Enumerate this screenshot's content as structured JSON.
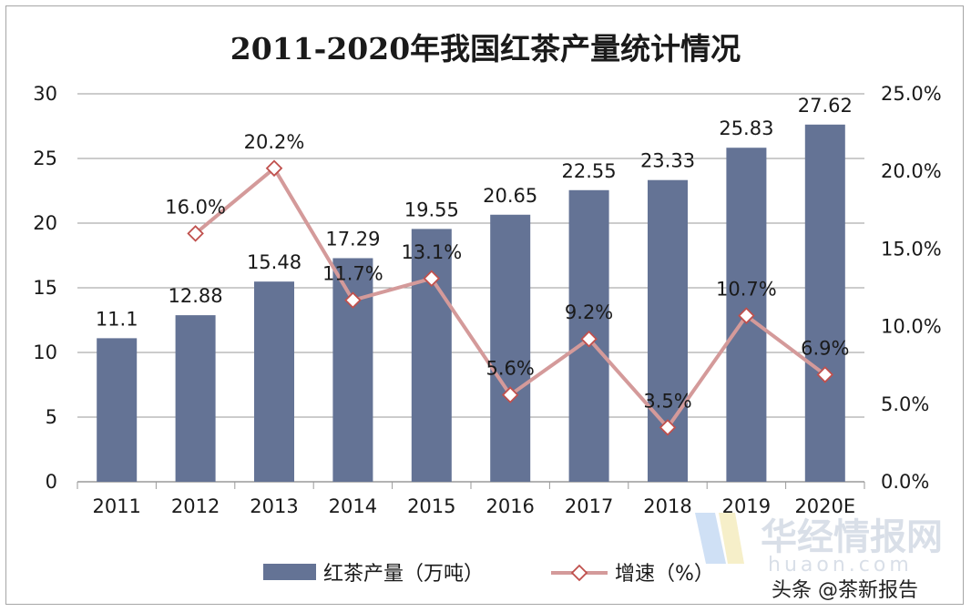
{
  "chart_data": {
    "type": "bar+line",
    "title": "2011-2020年我国红茶产量统计情况",
    "categories": [
      "2011",
      "2012",
      "2013",
      "2014",
      "2015",
      "2016",
      "2017",
      "2018",
      "2019",
      "2020E"
    ],
    "series": [
      {
        "name": "红茶产量（万吨）",
        "type": "bar",
        "axis": "left",
        "color": "#647395",
        "values": [
          11.1,
          12.88,
          15.48,
          17.29,
          19.55,
          20.65,
          22.55,
          23.33,
          25.83,
          27.62
        ],
        "labels": [
          "11.1",
          "12.88",
          "15.48",
          "17.29",
          "19.55",
          "20.65",
          "22.55",
          "23.33",
          "25.83",
          "27.62"
        ]
      },
      {
        "name": "增速（%）",
        "type": "line",
        "axis": "right",
        "color": "#d49a9a",
        "values": [
          null,
          16.0,
          20.2,
          11.7,
          13.1,
          5.6,
          9.2,
          3.5,
          10.7,
          6.9
        ],
        "labels": [
          null,
          "16.0%",
          "20.2%",
          "11.7%",
          "13.1%",
          "5.6%",
          "9.2%",
          "3.5%",
          "10.7%",
          "6.9%"
        ]
      }
    ],
    "y_left": {
      "ylim": [
        0,
        30
      ],
      "ticks": [
        "0",
        "5",
        "10",
        "15",
        "20",
        "25",
        "30"
      ]
    },
    "y_right": {
      "ylim": [
        0,
        25
      ],
      "ticks": [
        "0.0%",
        "5.0%",
        "10.0%",
        "15.0%",
        "20.0%",
        "25.0%"
      ]
    },
    "grid": true,
    "legend_position": "bottom"
  },
  "watermark": {
    "main": "华经情报网",
    "sub": "huaon.com"
  },
  "credit": "头条 @茶新报告"
}
